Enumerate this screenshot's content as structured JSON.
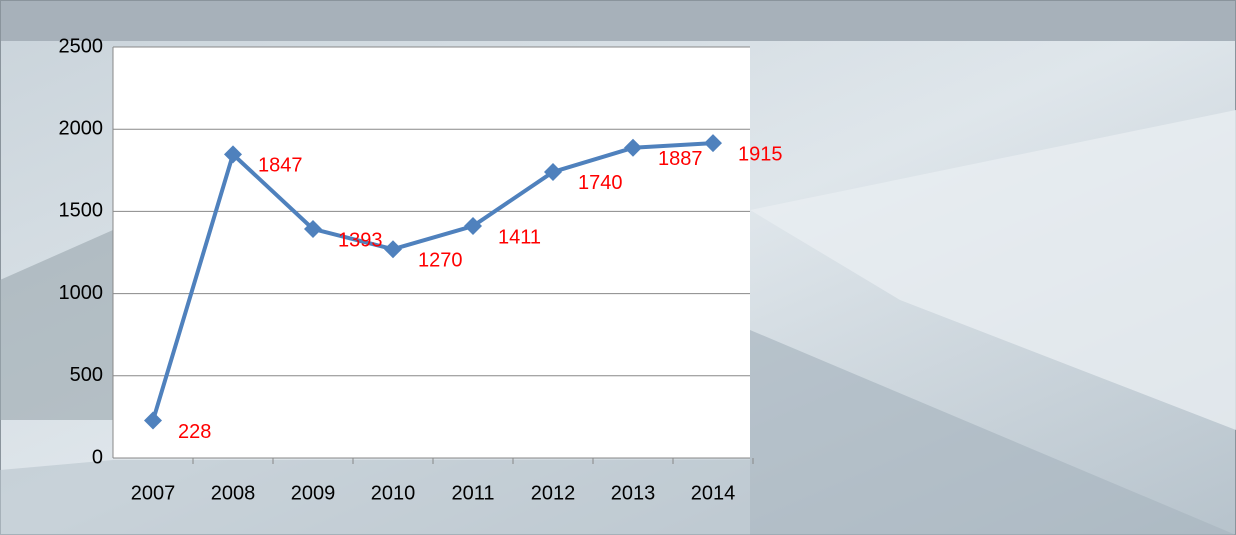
{
  "chart_data": {
    "type": "line",
    "categories": [
      "2007",
      "2008",
      "2009",
      "2010",
      "2011",
      "2012",
      "2013",
      "2014"
    ],
    "series": [
      {
        "color": "#4f81bd",
        "values": [
          228,
          1847,
          1393,
          1270,
          1411,
          1740,
          1887,
          1915
        ]
      }
    ],
    "label_color": "#ff0000",
    "ylim": [
      0,
      2500
    ],
    "yticks": [
      0,
      500,
      1000,
      1500,
      2000,
      2500
    ],
    "grid": true
  }
}
